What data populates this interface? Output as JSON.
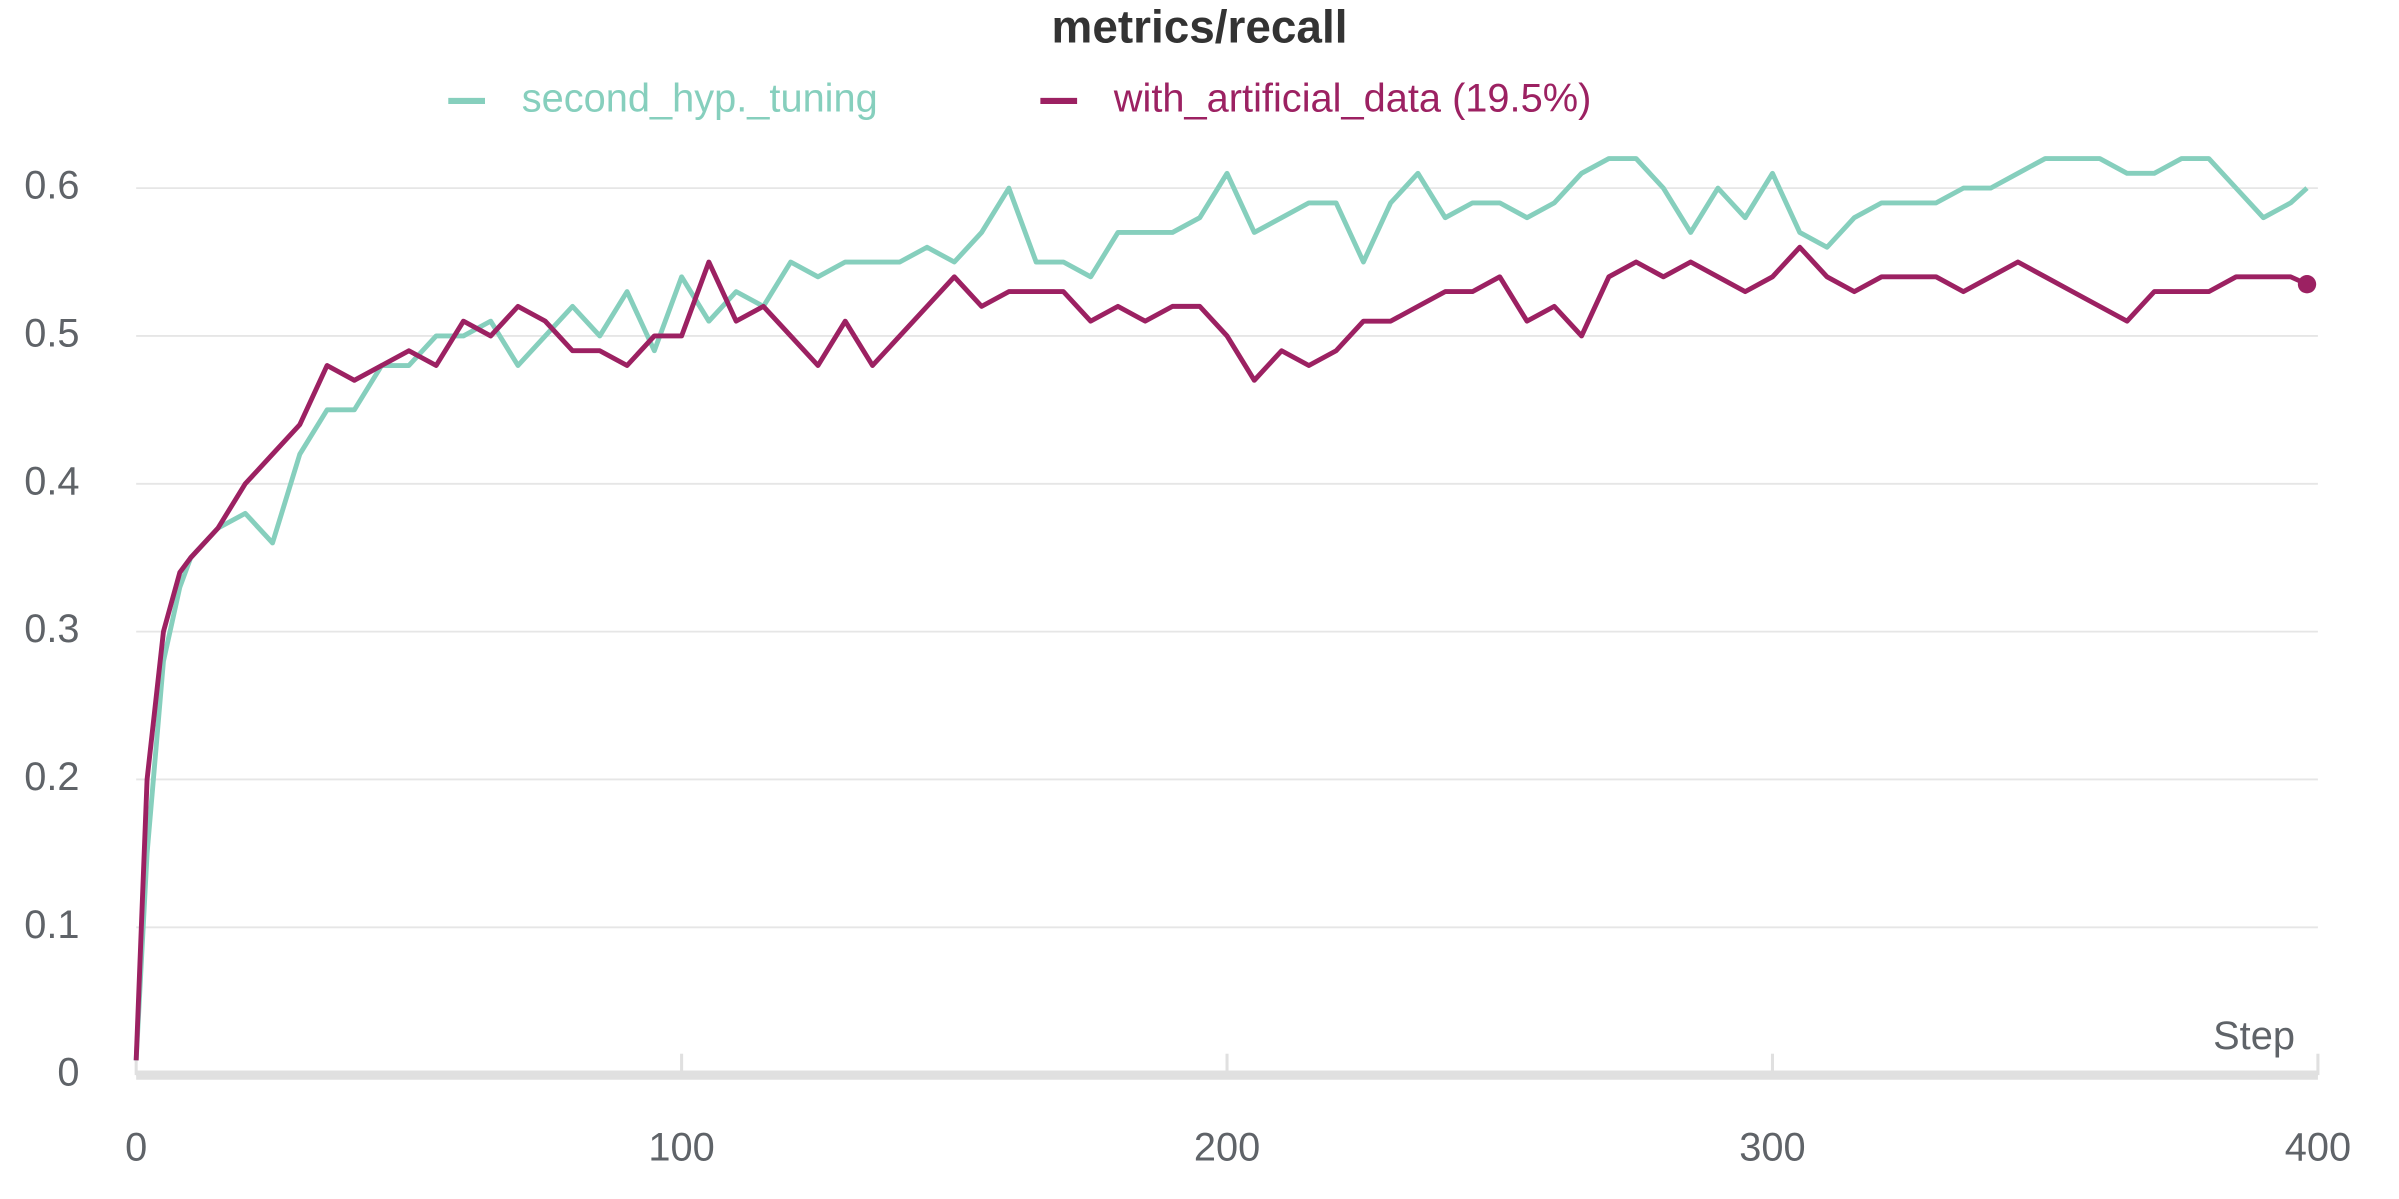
{
  "chart_data": {
    "type": "line",
    "title": "metrics/recall",
    "x_label": "Step",
    "x": [
      0,
      2,
      5,
      8,
      10,
      15,
      20,
      25,
      30,
      35,
      40,
      45,
      50,
      55,
      60,
      65,
      70,
      75,
      80,
      85,
      90,
      95,
      100,
      105,
      110,
      115,
      120,
      125,
      130,
      135,
      140,
      145,
      150,
      155,
      160,
      165,
      170,
      175,
      180,
      185,
      190,
      195,
      200,
      205,
      210,
      215,
      220,
      225,
      230,
      235,
      240,
      245,
      250,
      255,
      260,
      265,
      270,
      275,
      280,
      285,
      290,
      295,
      300,
      305,
      310,
      315,
      320,
      325,
      330,
      335,
      340,
      345,
      350,
      355,
      360,
      365,
      370,
      375,
      380,
      385,
      390,
      395,
      398
    ],
    "series": [
      {
        "name": "second_hyp._tuning",
        "color": "#86cfbd",
        "values": [
          0.01,
          0.15,
          0.28,
          0.33,
          0.35,
          0.37,
          0.38,
          0.36,
          0.42,
          0.45,
          0.45,
          0.48,
          0.48,
          0.5,
          0.5,
          0.51,
          0.48,
          0.5,
          0.52,
          0.5,
          0.53,
          0.49,
          0.54,
          0.51,
          0.53,
          0.52,
          0.55,
          0.54,
          0.55,
          0.55,
          0.55,
          0.56,
          0.55,
          0.57,
          0.6,
          0.55,
          0.55,
          0.54,
          0.57,
          0.57,
          0.57,
          0.58,
          0.61,
          0.57,
          0.58,
          0.59,
          0.59,
          0.55,
          0.59,
          0.61,
          0.58,
          0.59,
          0.59,
          0.58,
          0.59,
          0.61,
          0.62,
          0.62,
          0.6,
          0.57,
          0.6,
          0.58,
          0.61,
          0.57,
          0.56,
          0.58,
          0.59,
          0.59,
          0.59,
          0.6,
          0.6,
          0.61,
          0.62,
          0.62,
          0.62,
          0.61,
          0.61,
          0.62,
          0.62,
          0.6,
          0.58,
          0.59,
          0.6
        ]
      },
      {
        "name": "with_artificial_data (19.5%)",
        "color": "#9c2162",
        "values": [
          0.01,
          0.2,
          0.3,
          0.34,
          0.35,
          0.37,
          0.4,
          0.42,
          0.44,
          0.48,
          0.47,
          0.48,
          0.49,
          0.48,
          0.51,
          0.5,
          0.52,
          0.51,
          0.49,
          0.49,
          0.48,
          0.5,
          0.5,
          0.55,
          0.51,
          0.52,
          0.5,
          0.48,
          0.51,
          0.48,
          0.5,
          0.52,
          0.54,
          0.52,
          0.53,
          0.53,
          0.53,
          0.51,
          0.52,
          0.51,
          0.52,
          0.52,
          0.5,
          0.47,
          0.49,
          0.48,
          0.49,
          0.51,
          0.51,
          0.52,
          0.53,
          0.53,
          0.54,
          0.51,
          0.52,
          0.5,
          0.54,
          0.55,
          0.54,
          0.55,
          0.54,
          0.53,
          0.54,
          0.56,
          0.54,
          0.53,
          0.54,
          0.54,
          0.54,
          0.53,
          0.54,
          0.55,
          0.54,
          0.53,
          0.52,
          0.51,
          0.53,
          0.53,
          0.53,
          0.54,
          0.54,
          0.54,
          0.535
        ]
      }
    ],
    "xlim": [
      0,
      400
    ],
    "xticks": [
      0,
      100,
      200,
      300,
      400
    ],
    "ylim": [
      0,
      0.6
    ],
    "yticks": [
      0,
      0.1,
      0.2,
      0.3,
      0.4,
      0.5,
      0.6
    ],
    "grid": true
  }
}
